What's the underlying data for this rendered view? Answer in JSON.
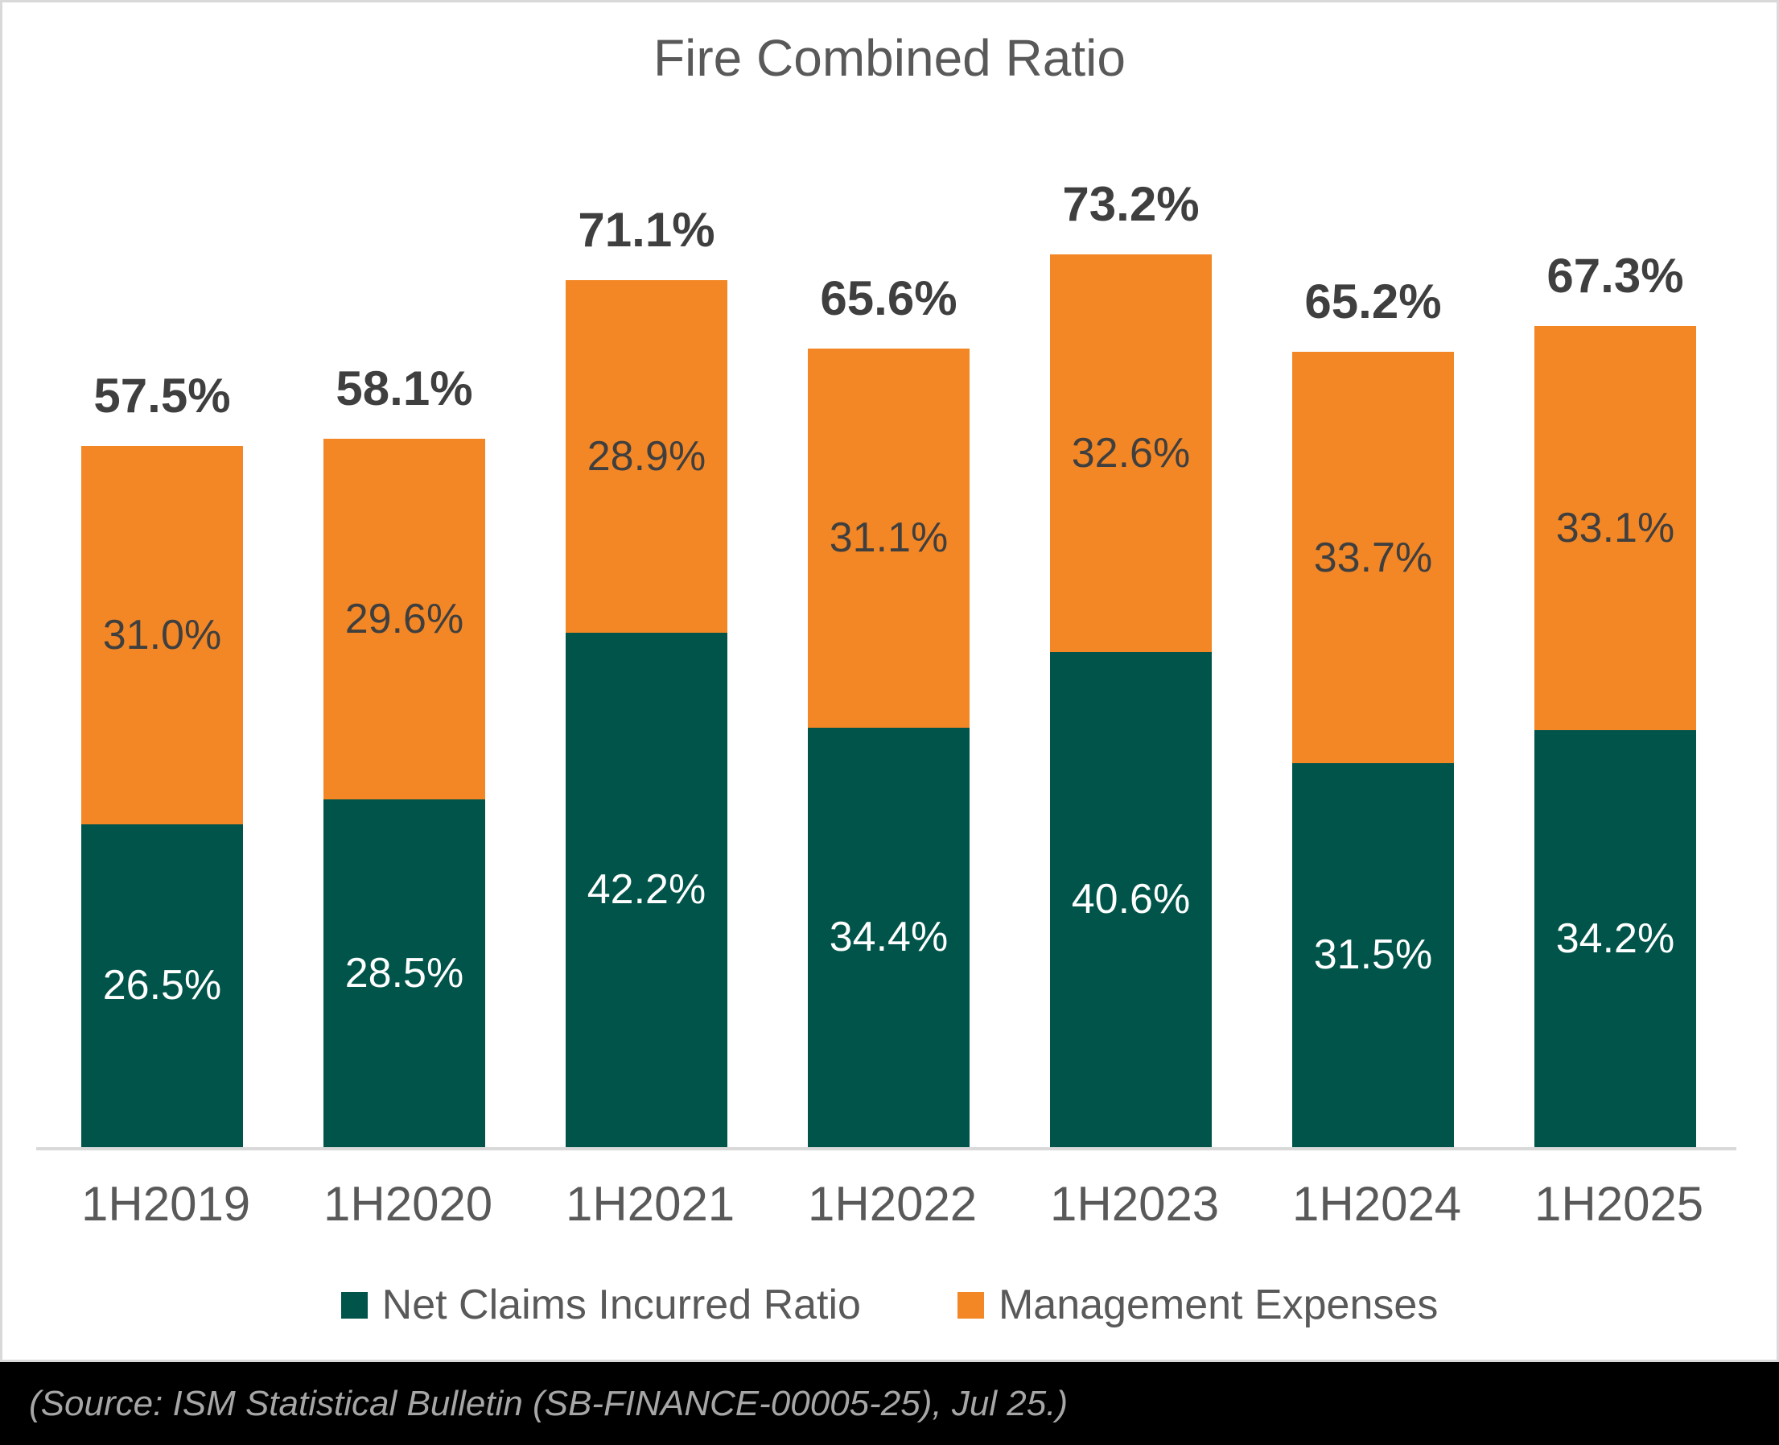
{
  "title": "Fire Combined Ratio",
  "source_note": "(Source: ISM Statistical Bulletin (SB-FINANCE-00005-25), Jul 25.)",
  "colors": {
    "net_claims": "#00544a",
    "management_expenses": "#f38726",
    "baseline": "#d9d9d9",
    "frame_border": "#d9d9d9",
    "title_text": "#595959",
    "data_label_dark": "#3f3f3f",
    "data_label_light": "#ffffff",
    "caption_background": "#000000",
    "caption_text": "#a6a6a6"
  },
  "chart_data": {
    "type": "bar",
    "stacked": true,
    "grid": false,
    "legend_position": "bottom",
    "title": "Fire Combined Ratio",
    "xlabel": "",
    "ylabel": "",
    "ylim": [
      0,
      90
    ],
    "categories": [
      "1H2019",
      "1H2020",
      "1H2021",
      "1H2022",
      "1H2023",
      "1H2024",
      "1H2025"
    ],
    "series": [
      {
        "name": "Net Claims Incurred Ratio",
        "color": "#00544a",
        "values": [
          26.5,
          28.5,
          42.2,
          34.4,
          40.6,
          31.5,
          34.2
        ],
        "labels": [
          "26.5%",
          "28.5%",
          "42.2%",
          "34.4%",
          "40.6%",
          "31.5%",
          "34.2%"
        ]
      },
      {
        "name": "Management Expenses",
        "color": "#f38726",
        "values": [
          31.0,
          29.6,
          28.9,
          31.1,
          32.6,
          33.7,
          33.1
        ],
        "labels": [
          "31.0%",
          "29.6%",
          "28.9%",
          "31.1%",
          "32.6%",
          "33.7%",
          "33.1%"
        ]
      }
    ],
    "totals": [
      57.5,
      58.1,
      71.1,
      65.6,
      73.2,
      65.2,
      67.3
    ],
    "total_labels": [
      "57.5%",
      "58.1%",
      "71.1%",
      "65.6%",
      "73.2%",
      "65.2%",
      "67.3%"
    ]
  }
}
